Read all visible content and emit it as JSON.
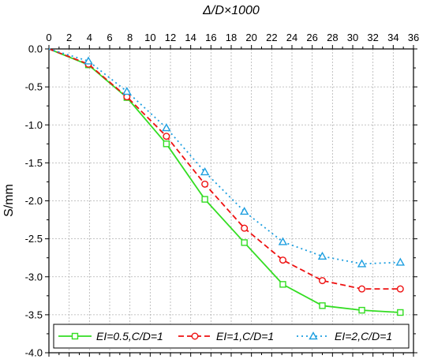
{
  "chart_data": {
    "type": "line",
    "title": "",
    "xlabel": "Δ/D×1000",
    "ylabel": "S/mm",
    "xlim": [
      0,
      36
    ],
    "ylim": [
      -4.0,
      0.0
    ],
    "x_ticks": [
      0,
      2,
      4,
      6,
      8,
      10,
      12,
      14,
      16,
      18,
      20,
      22,
      24,
      26,
      28,
      30,
      32,
      34,
      36
    ],
    "y_ticks": [
      0.0,
      -0.5,
      -1.0,
      -1.5,
      -2.0,
      -2.5,
      -3.0,
      -3.5,
      -4.0
    ],
    "x_tick_labels": [
      "0",
      "2",
      "4",
      "6",
      "8",
      "10",
      "12",
      "14",
      "16",
      "18",
      "20",
      "22",
      "24",
      "26",
      "28",
      "30",
      "32",
      "34",
      "36"
    ],
    "y_tick_labels": [
      "0.0",
      "-0.5",
      "-1.0",
      "-1.5",
      "-2.0",
      "-2.5",
      "-3.0",
      "-3.5",
      "-4.0"
    ],
    "x_axis_position": "top",
    "grid": true,
    "legend_position": "bottom",
    "series": [
      {
        "name": "EI=0.5,C/D=1",
        "color": "#33dd22",
        "line_style": "solid",
        "marker": "square",
        "x": [
          0,
          3.9,
          7.7,
          11.6,
          15.4,
          19.3,
          23.1,
          27.0,
          30.9,
          34.7
        ],
        "y": [
          0,
          -0.21,
          -0.64,
          -1.25,
          -1.98,
          -2.55,
          -3.1,
          -3.38,
          -3.44,
          -3.47
        ]
      },
      {
        "name": "EI=1,C/D=1",
        "color": "#ee1111",
        "line_style": "dashed",
        "marker": "circle",
        "x": [
          0,
          3.9,
          7.7,
          11.6,
          15.4,
          19.3,
          23.1,
          27.0,
          30.9,
          34.7
        ],
        "y": [
          0,
          -0.2,
          -0.63,
          -1.15,
          -1.78,
          -2.36,
          -2.78,
          -3.05,
          -3.16,
          -3.16
        ]
      },
      {
        "name": "EI=2,C/D=1",
        "color": "#1e9fe0",
        "line_style": "dotted",
        "marker": "triangle",
        "x": [
          0,
          3.9,
          7.7,
          11.6,
          15.4,
          19.3,
          23.1,
          27.0,
          30.9,
          34.7
        ],
        "y": [
          0,
          -0.16,
          -0.56,
          -1.04,
          -1.62,
          -2.14,
          -2.54,
          -2.73,
          -2.83,
          -2.81
        ]
      }
    ]
  }
}
